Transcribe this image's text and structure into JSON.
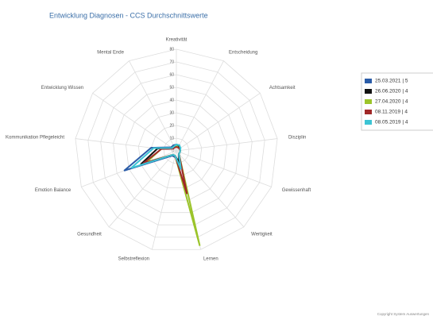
{
  "chart_data": {
    "type": "radar",
    "title": "Entwicklung Diagnosen - CCS Durchschnittswerte",
    "categories": [
      "Kreativität",
      "Entscheidung",
      "Achtsamkeit",
      "Disziplin",
      "Gewissenhaft",
      "Wertigkeit",
      "Lernen",
      "Selbstreflexion",
      "Gesundheit",
      "Emotion Balance",
      "Kommunikation Pflegeleicht",
      "Entwicklung Wissen",
      "Mental Ende"
    ],
    "ylim": [
      0,
      80
    ],
    "yticks": [
      0,
      10,
      20,
      30,
      40,
      50,
      60,
      70,
      80
    ],
    "series": [
      {
        "name": "25.03.2021 | 5",
        "color": "#2a5ca8",
        "values": [
          5,
          5,
          3,
          3,
          3,
          3,
          8,
          5,
          5,
          44,
          20,
          5,
          5
        ]
      },
      {
        "name": "26.06.2020 | 4",
        "color": "#111111",
        "values": [
          4,
          4,
          3,
          3,
          3,
          3,
          10,
          4,
          4,
          30,
          15,
          4,
          4
        ]
      },
      {
        "name": "27.04.2020 | 4",
        "color": "#9bc42a",
        "values": [
          4,
          3,
          3,
          3,
          3,
          3,
          77,
          4,
          4,
          25,
          12,
          4,
          4
        ]
      },
      {
        "name": "08.11.2019 | 4",
        "color": "#a02828",
        "values": [
          3,
          3,
          3,
          3,
          3,
          3,
          35,
          4,
          4,
          28,
          12,
          3,
          3
        ]
      },
      {
        "name": "08.05.2019 | 4",
        "color": "#3cc4d4",
        "values": [
          5,
          5,
          4,
          3,
          3,
          3,
          15,
          4,
          4,
          38,
          18,
          4,
          4
        ]
      }
    ],
    "legend": "right",
    "footer": "Copyright System Auswertungen"
  }
}
